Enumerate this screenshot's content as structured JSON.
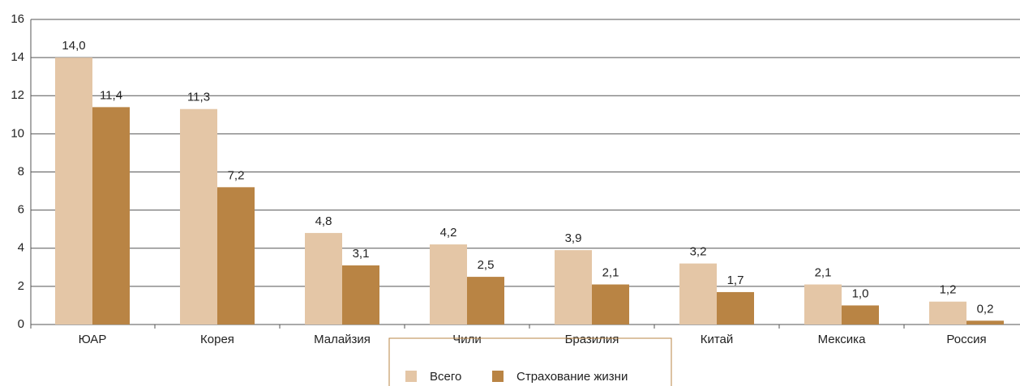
{
  "chart_data": {
    "type": "bar",
    "categories": [
      "ЮАР",
      "Корея",
      "Малайзия",
      "Чили",
      "Бразилия",
      "Китай",
      "Мексика",
      "Россия"
    ],
    "series": [
      {
        "name": "Всего",
        "color": "#e4c6a6",
        "values": [
          14.0,
          11.3,
          4.8,
          4.2,
          3.9,
          3.2,
          2.1,
          1.2
        ],
        "value_labels": [
          "14,0",
          "11,3",
          "4,8",
          "4,2",
          "3,9",
          "3,2",
          "2,1",
          "1,2"
        ]
      },
      {
        "name": "Страхование жизни",
        "color": "#b98444",
        "values": [
          11.4,
          7.2,
          3.1,
          2.5,
          2.1,
          1.7,
          1.0,
          0.2
        ],
        "value_labels": [
          "11,4",
          "7,2",
          "3,1",
          "2,5",
          "2,1",
          "1,7",
          "1,0",
          "0,2"
        ]
      }
    ],
    "ylim": [
      0,
      16
    ],
    "yticks": [
      0,
      2,
      4,
      6,
      8,
      10,
      12,
      14,
      16
    ],
    "grid": true
  }
}
